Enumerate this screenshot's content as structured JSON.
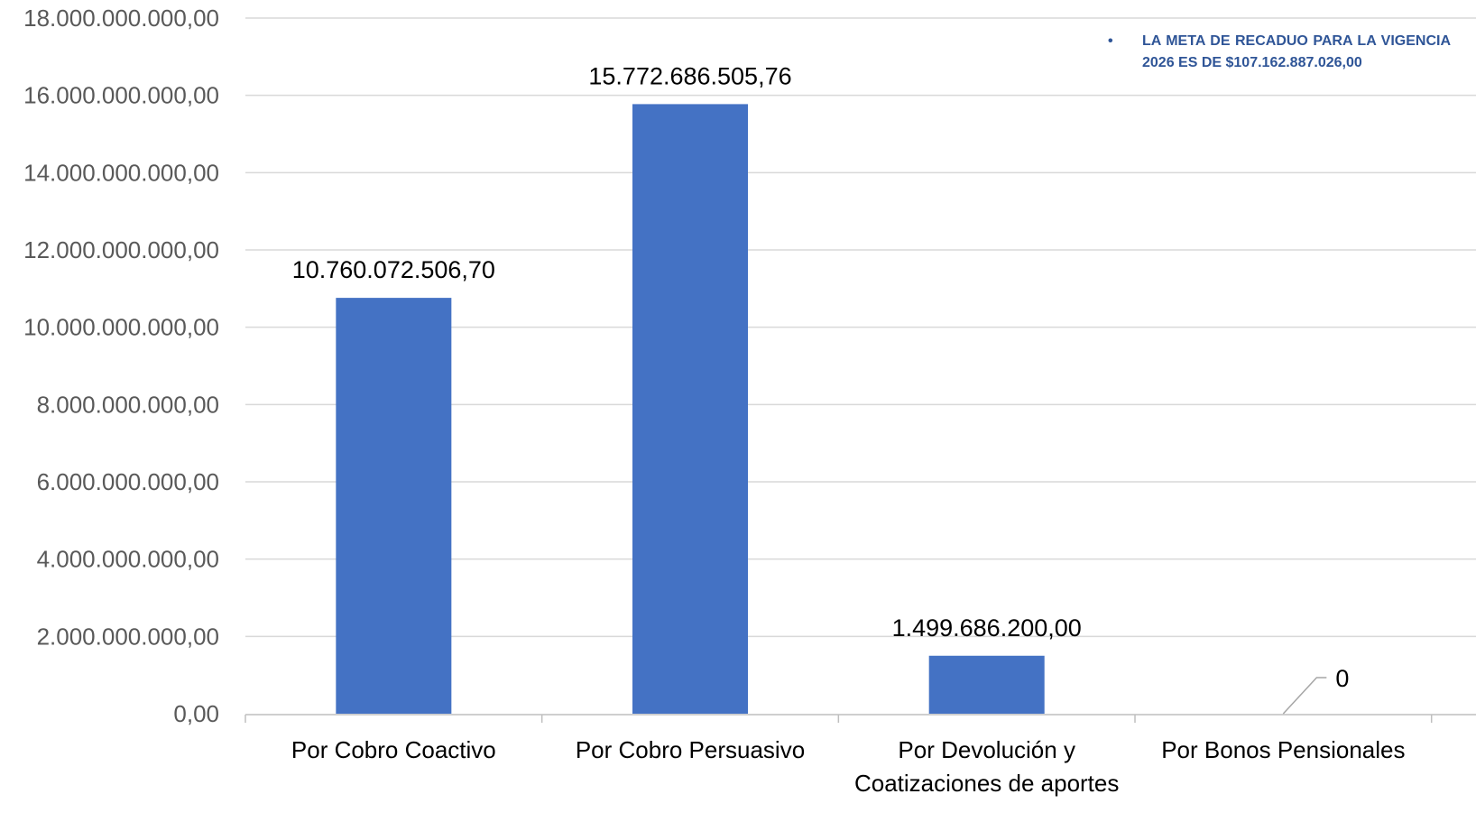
{
  "chart_data": {
    "type": "bar",
    "categories": [
      "Por Cobro Coactivo",
      "Por Cobro Persuasivo",
      "Por Devolución y Coatizaciones de aportes",
      "Por Bonos Pensionales"
    ],
    "category_lines": [
      [
        "Por Cobro Coactivo"
      ],
      [
        "Por Cobro Persuasivo"
      ],
      [
        "Por Devolución y",
        "Coatizaciones de aportes"
      ],
      [
        "Por Bonos Pensionales"
      ]
    ],
    "values": [
      10760072506.7,
      15772686505.76,
      1499686200.0,
      0
    ],
    "data_labels": [
      "10.760.072.506,70",
      "15.772.686.505,76",
      "1.499.686.200,00",
      "0"
    ],
    "ylim": [
      0,
      18000000000
    ],
    "yticks": [
      0,
      2000000000,
      4000000000,
      6000000000,
      8000000000,
      10000000000,
      12000000000,
      14000000000,
      16000000000,
      18000000000
    ],
    "ytick_labels": [
      "0,00",
      "2.000.000.000,00",
      "4.000.000.000,00",
      "6.000.000.000,00",
      "8.000.000.000,00",
      "10.000.000.000,00",
      "12.000.000.000,00",
      "14.000.000.000,00",
      "16.000.000.000,00",
      "18.000.000.000,00"
    ],
    "grid": true,
    "bar_color": "#4472C4",
    "grid_color": "#D9D9D9",
    "title": "",
    "xlabel": "",
    "ylabel": ""
  },
  "annotation": {
    "bullet": "•",
    "text": "LA META DE RECADUO PARA LA VIGENCIA 2026 ES DE $107.162.887.026,00",
    "color": "#2F5597"
  }
}
